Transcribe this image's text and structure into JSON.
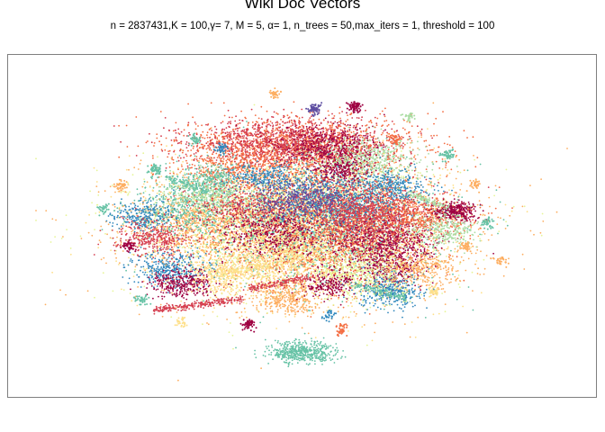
{
  "chart_data": {
    "type": "scatter",
    "title": "Wiki Doc Vectors",
    "subtitle": "n = 2837431,K = 100,γ= 7, M = 5, α= 1, n_trees = 50,max_iters = 1, threshold = 100",
    "xlabel": "",
    "ylabel": "",
    "axes_visible": false,
    "grid": false,
    "legend": "none",
    "palette": [
      "#9e0142",
      "#d53e4f",
      "#f46d43",
      "#fdae61",
      "#fee08b",
      "#e6f598",
      "#abdda4",
      "#66c2a5",
      "#3288bd",
      "#5e4fa2"
    ],
    "clusters": [
      {
        "x": 0.0,
        "y": 0.02,
        "sx": 0.3,
        "sy": 0.24,
        "n": 2600,
        "color": "#fdae61"
      },
      {
        "x": 0.0,
        "y": 0.05,
        "sx": 0.26,
        "sy": 0.22,
        "n": 2200,
        "color": "#fee08b"
      },
      {
        "x": -0.05,
        "y": 0.0,
        "sx": 0.3,
        "sy": 0.22,
        "n": 1500,
        "color": "#e6f598"
      },
      {
        "x": 0.05,
        "y": 0.05,
        "sx": 0.22,
        "sy": 0.2,
        "n": 1400,
        "color": "#66c2a5"
      },
      {
        "x": 0.1,
        "y": -0.02,
        "sx": 0.2,
        "sy": 0.18,
        "n": 1400,
        "color": "#f46d43"
      },
      {
        "x": 0.0,
        "y": 0.55,
        "sx": 0.22,
        "sy": 0.1,
        "n": 1600,
        "color": "#f46d43"
      },
      {
        "x": -0.05,
        "y": 0.58,
        "sx": 0.18,
        "sy": 0.08,
        "n": 1200,
        "color": "#d53e4f"
      },
      {
        "x": 0.1,
        "y": 0.55,
        "sx": 0.1,
        "sy": 0.07,
        "n": 500,
        "color": "#9e0142"
      },
      {
        "x": 0.25,
        "y": 0.45,
        "sx": 0.1,
        "sy": 0.08,
        "n": 500,
        "color": "#abdda4"
      },
      {
        "x": -0.25,
        "y": 0.4,
        "sx": 0.1,
        "sy": 0.08,
        "n": 350,
        "color": "#f46d43"
      },
      {
        "x": 0.15,
        "y": 0.2,
        "sx": 0.15,
        "sy": 0.1,
        "n": 900,
        "color": "#3288bd"
      },
      {
        "x": 0.2,
        "y": 0.15,
        "sx": 0.12,
        "sy": 0.1,
        "n": 700,
        "color": "#d53e4f"
      },
      {
        "x": 0.3,
        "y": 0.05,
        "sx": 0.12,
        "sy": 0.1,
        "n": 800,
        "color": "#d53e4f"
      },
      {
        "x": 0.45,
        "y": 0.1,
        "sx": 0.1,
        "sy": 0.06,
        "n": 400,
        "color": "#f46d43"
      },
      {
        "x": 0.58,
        "y": 0.13,
        "sx": 0.04,
        "sy": 0.03,
        "n": 300,
        "color": "#9e0142"
      },
      {
        "x": 0.3,
        "y": -0.1,
        "sx": 0.1,
        "sy": 0.08,
        "n": 450,
        "color": "#9e0142"
      },
      {
        "x": 0.33,
        "y": -0.25,
        "sx": 0.06,
        "sy": 0.06,
        "n": 300,
        "color": "#9e0142"
      },
      {
        "x": 0.33,
        "y": -0.4,
        "sx": 0.06,
        "sy": 0.06,
        "n": 350,
        "color": "#3288bd"
      },
      {
        "x": 0.25,
        "y": -0.3,
        "sx": 0.1,
        "sy": 0.08,
        "n": 400,
        "color": "#e6f598"
      },
      {
        "x": -0.1,
        "y": -0.2,
        "sx": 0.1,
        "sy": 0.1,
        "n": 500,
        "color": "#fee08b"
      },
      {
        "x": -0.3,
        "y": -0.3,
        "sx": 0.08,
        "sy": 0.06,
        "n": 350,
        "color": "#fee08b"
      },
      {
        "x": -0.5,
        "y": -0.25,
        "sx": 0.07,
        "sy": 0.06,
        "n": 350,
        "color": "#3288bd"
      },
      {
        "x": -0.45,
        "y": -0.35,
        "sx": 0.06,
        "sy": 0.05,
        "n": 300,
        "color": "#9e0142"
      },
      {
        "x": -0.4,
        "y": 0.05,
        "sx": 0.12,
        "sy": 0.1,
        "n": 500,
        "color": "#fdae61"
      },
      {
        "x": -0.45,
        "y": 0.15,
        "sx": 0.1,
        "sy": 0.08,
        "n": 400,
        "color": "#66c2a5"
      },
      {
        "x": -0.6,
        "y": 0.1,
        "sx": 0.06,
        "sy": 0.05,
        "n": 250,
        "color": "#3288bd"
      },
      {
        "x": -0.55,
        "y": -0.05,
        "sx": 0.08,
        "sy": 0.06,
        "n": 350,
        "color": "#d53e4f"
      },
      {
        "x": -0.35,
        "y": 0.25,
        "sx": 0.08,
        "sy": 0.06,
        "n": 350,
        "color": "#abdda4"
      },
      {
        "x": -0.2,
        "y": 0.15,
        "sx": 0.1,
        "sy": 0.08,
        "n": 400,
        "color": "#d53e4f"
      },
      {
        "x": -0.1,
        "y": 0.0,
        "sx": 0.1,
        "sy": 0.08,
        "n": 400,
        "color": "#9e0142"
      },
      {
        "x": -0.35,
        "y": 0.35,
        "sx": 0.06,
        "sy": 0.05,
        "n": 200,
        "color": "#66c2a5"
      },
      {
        "x": -0.05,
        "y": -0.45,
        "sx": 0.06,
        "sy": 0.05,
        "n": 300,
        "color": "#fdae61"
      },
      {
        "x": 0.1,
        "y": -0.35,
        "sx": 0.05,
        "sy": 0.05,
        "n": 200,
        "color": "#9e0142"
      },
      {
        "x": 0.45,
        "y": -0.25,
        "sx": 0.08,
        "sy": 0.06,
        "n": 300,
        "color": "#fdae61"
      },
      {
        "x": 0.55,
        "y": 0.0,
        "sx": 0.06,
        "sy": 0.05,
        "n": 250,
        "color": "#abdda4"
      },
      {
        "x": 0.0,
        "y": -0.8,
        "sx": 0.06,
        "sy": 0.04,
        "n": 500,
        "color": "#66c2a5"
      },
      {
        "x": 0.35,
        "y": 0.3,
        "sx": 0.06,
        "sy": 0.05,
        "n": 200,
        "color": "#3288bd"
      },
      {
        "x": 0.15,
        "y": 0.4,
        "sx": 0.05,
        "sy": 0.04,
        "n": 200,
        "color": "#9e0142"
      },
      {
        "x": -0.15,
        "y": 0.35,
        "sx": 0.06,
        "sy": 0.04,
        "n": 200,
        "color": "#3288bd"
      },
      {
        "x": 0.0,
        "y": 0.2,
        "sx": 0.1,
        "sy": 0.06,
        "n": 400,
        "color": "#5e4fa2"
      }
    ],
    "streaks": [
      {
        "x0": -0.55,
        "y0": -0.52,
        "x1": -0.22,
        "y1": -0.45,
        "n": 250,
        "color": "#d53e4f"
      },
      {
        "x0": -0.2,
        "y0": -0.38,
        "x1": 0.05,
        "y1": -0.3,
        "n": 160,
        "color": "#d53e4f"
      },
      {
        "x0": -0.35,
        "y0": -0.28,
        "x1": -0.1,
        "y1": -0.22,
        "n": 120,
        "color": "#fee08b"
      },
      {
        "x0": 0.2,
        "y0": -0.35,
        "x1": 0.4,
        "y1": -0.45,
        "n": 120,
        "color": "#66c2a5"
      },
      {
        "x0": -0.5,
        "y0": 0.35,
        "x1": -0.35,
        "y1": 0.25,
        "n": 100,
        "color": "#66c2a5"
      },
      {
        "x0": 0.4,
        "y0": 0.25,
        "x1": 0.55,
        "y1": 0.15,
        "n": 100,
        "color": "#abdda4"
      }
    ],
    "blobs": [
      {
        "x": -0.55,
        "y": 0.4,
        "n": 60,
        "color": "#66c2a5"
      },
      {
        "x": -0.68,
        "y": 0.3,
        "n": 50,
        "color": "#fdae61"
      },
      {
        "x": 0.55,
        "y": 0.5,
        "n": 50,
        "color": "#66c2a5"
      },
      {
        "x": 0.62,
        "y": -0.1,
        "n": 40,
        "color": "#fdae61"
      },
      {
        "x": 0.7,
        "y": 0.05,
        "n": 40,
        "color": "#66c2a5"
      },
      {
        "x": -0.65,
        "y": -0.1,
        "n": 50,
        "color": "#9e0142"
      },
      {
        "x": -0.6,
        "y": -0.45,
        "n": 40,
        "color": "#66c2a5"
      },
      {
        "x": 0.2,
        "y": 0.82,
        "n": 80,
        "color": "#9e0142"
      },
      {
        "x": 0.05,
        "y": 0.8,
        "n": 70,
        "color": "#5e4fa2"
      },
      {
        "x": -0.3,
        "y": 0.55,
        "n": 40,
        "color": "#3288bd"
      },
      {
        "x": 0.5,
        "y": -0.4,
        "n": 40,
        "color": "#fee08b"
      },
      {
        "x": -0.2,
        "y": -0.62,
        "n": 50,
        "color": "#9e0142"
      },
      {
        "x": 0.15,
        "y": -0.65,
        "n": 40,
        "color": "#f46d43"
      },
      {
        "x": 0.35,
        "y": 0.6,
        "n": 40,
        "color": "#f46d43"
      },
      {
        "x": -0.4,
        "y": 0.6,
        "n": 40,
        "color": "#66c2a5"
      },
      {
        "x": -0.75,
        "y": 0.15,
        "n": 30,
        "color": "#66c2a5"
      },
      {
        "x": 0.65,
        "y": 0.3,
        "n": 35,
        "color": "#fdae61"
      },
      {
        "x": 0.75,
        "y": -0.2,
        "n": 30,
        "color": "#fdae61"
      },
      {
        "x": -0.45,
        "y": -0.6,
        "n": 30,
        "color": "#fee08b"
      },
      {
        "x": 0.4,
        "y": 0.75,
        "n": 30,
        "color": "#abdda4"
      },
      {
        "x": -0.1,
        "y": 0.9,
        "n": 30,
        "color": "#fdae61"
      },
      {
        "x": 0.1,
        "y": -0.55,
        "n": 30,
        "color": "#3288bd"
      }
    ],
    "xlim": [
      -1,
      1
    ],
    "ylim": [
      -1,
      1
    ]
  }
}
